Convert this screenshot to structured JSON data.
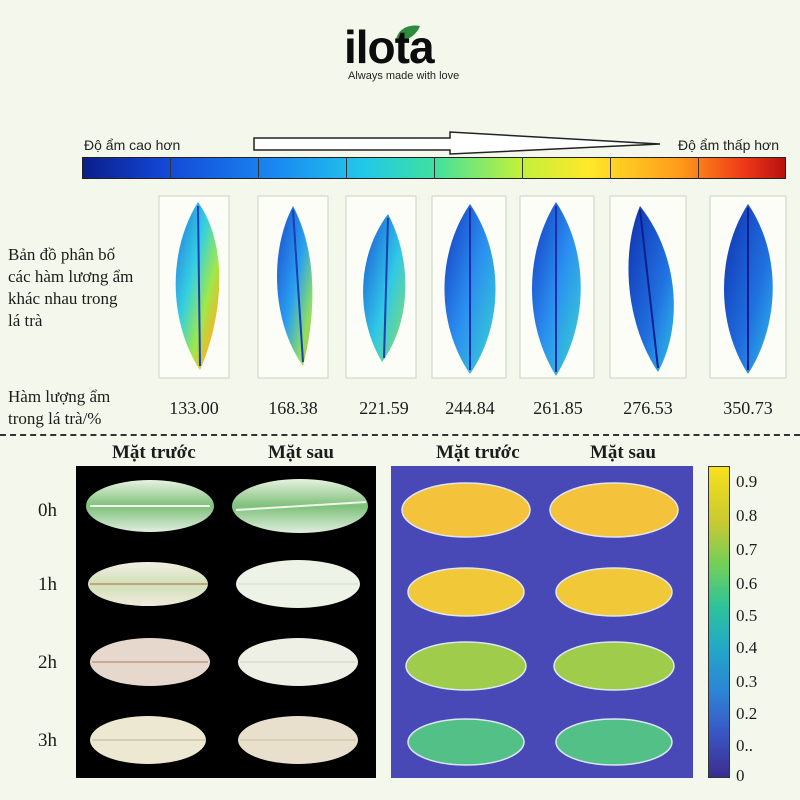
{
  "brand": {
    "name": "ilota",
    "tagline": "Always made with love"
  },
  "moisture_scale": {
    "left_label": "Độ ẩm cao hơn",
    "right_label": "Độ ẩm thấp hơn",
    "colors": [
      "#0a1f8a",
      "#1a8bf2",
      "#22c8e8",
      "#bff03c",
      "#ffe82a",
      "#f03a18",
      "#b81010"
    ]
  },
  "distribution": {
    "label_lines": [
      "Bản đồ phân bố",
      "các hàm lương ẩm",
      "khác nhau trong",
      "lá trà"
    ],
    "content_label_lines": [
      "Hàm lượng ẩm",
      "trong lá trà/%"
    ],
    "values": [
      "133.00",
      "168.38",
      "221.59",
      "244.84",
      "261.85",
      "276.53",
      "350.73"
    ]
  },
  "drying": {
    "left_columns": [
      "Mặt trước",
      "Mặt sau"
    ],
    "right_columns": [
      "Mặt trước",
      "Mặt sau"
    ],
    "rows": [
      "0h",
      "1h",
      "2h",
      "3h"
    ],
    "colorbar_labels": [
      "0.9",
      "0.8",
      "0.7",
      "0.6",
      "0.5",
      "0.4",
      "0.3",
      "0.2",
      "0..",
      "0"
    ],
    "row_colors": [
      "#f5c23c",
      "#f1c938",
      "#9fcc4a",
      "#52c087"
    ]
  }
}
